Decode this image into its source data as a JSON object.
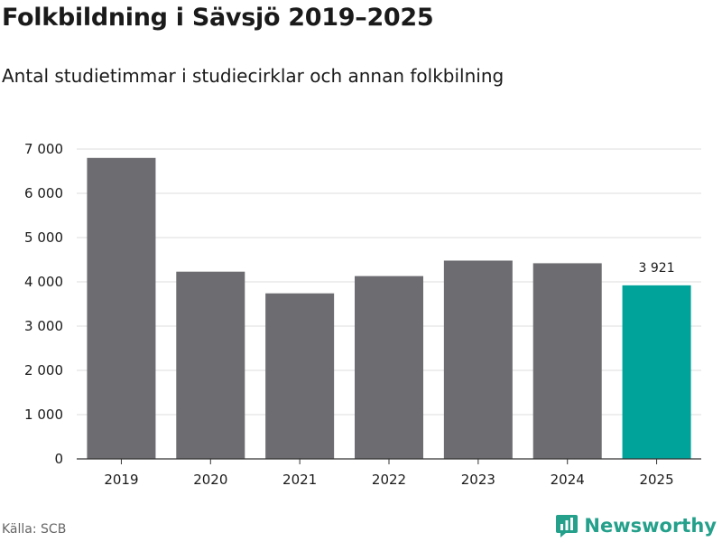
{
  "title": "Folkbildning i Sävsjö 2019–2025",
  "subtitle": "Antal studietimmar i studiecirklar och annan folkbilning",
  "source": "Källa: SCB",
  "brand": {
    "name": "Newsworthy",
    "color": "#24a08b",
    "icon": "newsworthy-logo-icon"
  },
  "chart_data": {
    "type": "bar",
    "categories": [
      "2019",
      "2020",
      "2021",
      "2022",
      "2023",
      "2024",
      "2025"
    ],
    "values": [
      6800,
      4230,
      3740,
      4130,
      4480,
      4420,
      3921
    ],
    "highlight_index": 6,
    "data_labels": [
      {
        "index": 6,
        "text": "3 921"
      }
    ],
    "y_ticks": [
      {
        "value": 0,
        "label": "0"
      },
      {
        "value": 1000,
        "label": "1 000"
      },
      {
        "value": 2000,
        "label": "2 000"
      },
      {
        "value": 3000,
        "label": "3 000"
      },
      {
        "value": 4000,
        "label": "4 000"
      },
      {
        "value": 5000,
        "label": "5 000"
      },
      {
        "value": 6000,
        "label": "6 000"
      },
      {
        "value": 7000,
        "label": "7 000"
      }
    ],
    "ylim": [
      0,
      7000
    ],
    "grid": true,
    "colors": {
      "bar": "#6d6c71",
      "highlight": "#00a39a",
      "grid": "#dddddd",
      "axis": "#333333"
    }
  }
}
